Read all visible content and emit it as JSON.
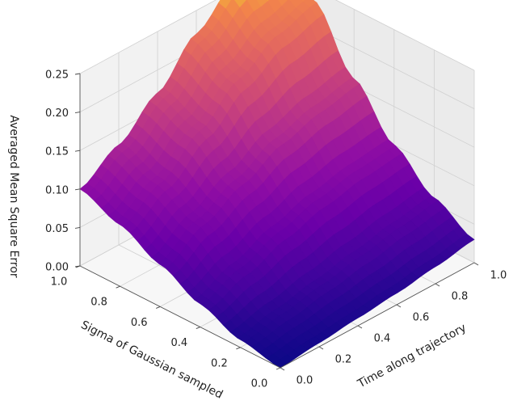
{
  "chart_data": {
    "type": "surface3d",
    "colormap": "plasma",
    "title": "",
    "xlabel": "Time along trajectory",
    "ylabel": "Sigma of Gaussian sampled",
    "zlabel": "Averaged Mean Square Error",
    "xlim": [
      0.0,
      1.0
    ],
    "ylim": [
      0.0,
      1.0
    ],
    "zlim": [
      0.0,
      0.25
    ],
    "x_ticks": [
      "0.0",
      "0.2",
      "0.4",
      "0.6",
      "0.8",
      "1.0"
    ],
    "y_ticks": [
      "0.0",
      "0.2",
      "0.4",
      "0.6",
      "0.8",
      "1.0"
    ],
    "z_ticks": [
      "0.00",
      "0.05",
      "0.10",
      "0.15",
      "0.20",
      "0.25"
    ],
    "grid": true,
    "x": [
      0.0,
      0.2,
      0.4,
      0.6,
      0.8,
      1.0
    ],
    "y": [
      0.0,
      0.2,
      0.4,
      0.6,
      0.8,
      1.0
    ],
    "z": [
      [
        0.0,
        0.005,
        0.01,
        0.015,
        0.022,
        0.03
      ],
      [
        0.01,
        0.02,
        0.03,
        0.04,
        0.05,
        0.058
      ],
      [
        0.03,
        0.05,
        0.07,
        0.085,
        0.095,
        0.1
      ],
      [
        0.055,
        0.085,
        0.11,
        0.135,
        0.15,
        0.16
      ],
      [
        0.08,
        0.11,
        0.15,
        0.19,
        0.22,
        0.235
      ],
      [
        0.1,
        0.13,
        0.17,
        0.22,
        0.26,
        0.275
      ]
    ]
  }
}
